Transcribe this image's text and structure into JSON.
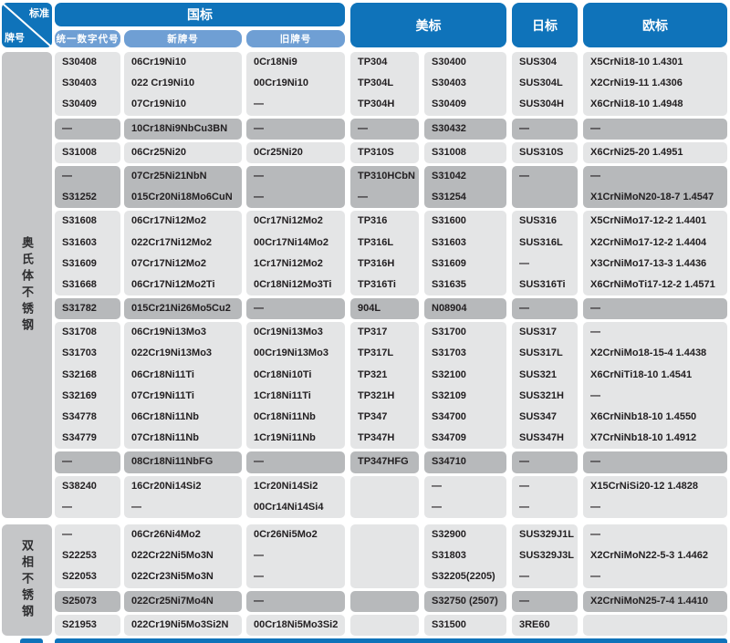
{
  "colors": {
    "header_blue": "#0f73ba",
    "subheader_blue": "#6f9fd4",
    "row_light": "#e4e5e6",
    "row_dark": "#b7b9bb",
    "label_gray": "#c5c6c8",
    "text": "#232022"
  },
  "corner": {
    "top_label": "标准",
    "bottom_label": "牌号"
  },
  "header": {
    "gb": {
      "label": "国标",
      "subcols": [
        "统一数字代号",
        "新牌号",
        "旧牌号"
      ]
    },
    "us": {
      "label": "美标"
    },
    "jp": {
      "label": "日标"
    },
    "eu": {
      "label": "欧标"
    }
  },
  "row_groups": [
    {
      "label": "奥氏体不锈钢",
      "blocks": [
        {
          "shade": "light",
          "rows": [
            [
              "S30408",
              "06Cr19Ni10",
              "0Cr18Ni9",
              "TP304",
              "S30400",
              "SUS304",
              "X5CrNi18-10 1.4301"
            ],
            [
              "S30403",
              "022 Cr19Ni10",
              "00Cr19Ni10",
              "TP304L",
              "S30403",
              "SUS304L",
              "X2CrNi19-11 1.4306"
            ],
            [
              "S30409",
              "07Cr19Ni10",
              "—",
              "TP304H",
              "S30409",
              "SUS304H",
              "X6CrNi18-10 1.4948"
            ]
          ]
        },
        {
          "shade": "dark",
          "rows": [
            [
              "—",
              "10Cr18Ni9NbCu3BN",
              "—",
              "—",
              "S30432",
              "—",
              "—"
            ]
          ]
        },
        {
          "shade": "light",
          "rows": [
            [
              "S31008",
              "06Cr25Ni20",
              "0Cr25Ni20",
              "TP310S",
              "S31008",
              "SUS310S",
              "X6CrNi25-20 1.4951"
            ]
          ]
        },
        {
          "shade": "dark",
          "rows": [
            [
              "—",
              "07Cr25Ni21NbN",
              "—",
              "TP310HCbN",
              "S31042",
              "—",
              "—"
            ],
            [
              "S31252",
              "015Cr20Ni18Mo6CuN",
              "—",
              "—",
              "S31254",
              "",
              "X1CrNiMoN20-18-7 1.4547"
            ]
          ]
        },
        {
          "shade": "light",
          "rows": [
            [
              "S31608",
              "06Cr17Ni12Mo2",
              "0Cr17Ni12Mo2",
              "TP316",
              "S31600",
              "SUS316",
              "X5CrNiMo17-12-2 1.4401"
            ],
            [
              "S31603",
              "022Cr17Ni12Mo2",
              "00Cr17Ni14Mo2",
              "TP316L",
              "S31603",
              "SUS316L",
              "X2CrNiMo17-12-2 1.4404"
            ],
            [
              "S31609",
              "07Cr17Ni12Mo2",
              "1Cr17Ni12Mo2",
              "TP316H",
              "S31609",
              "—",
              "X3CrNiMo17-13-3 1.4436"
            ],
            [
              "S31668",
              "06Cr17Ni12Mo2Ti",
              "0Cr18Ni12Mo3Ti",
              "TP316Ti",
              "S31635",
              "SUS316Ti",
              "X6CrNiMoTi17-12-2 1.4571"
            ]
          ]
        },
        {
          "shade": "dark",
          "rows": [
            [
              "S31782",
              "015Cr21Ni26Mo5Cu2",
              "—",
              "904L",
              "N08904",
              "—",
              "—"
            ]
          ]
        },
        {
          "shade": "light",
          "rows": [
            [
              "S31708",
              "06Cr19Ni13Mo3",
              "0Cr19Ni13Mo3",
              "TP317",
              "S31700",
              "SUS317",
              "—"
            ],
            [
              "S31703",
              "022Cr19Ni13Mo3",
              "00Cr19Ni13Mo3",
              "TP317L",
              "S31703",
              "SUS317L",
              "X2CrNiMo18-15-4 1.4438"
            ],
            [
              "S32168",
              "06Cr18Ni11Ti",
              "0Cr18Ni10Ti",
              "TP321",
              "S32100",
              "SUS321",
              "X6CrNiTi18-10 1.4541"
            ],
            [
              "S32169",
              "07Cr19Ni11Ti",
              "1Cr18Ni11Ti",
              "TP321H",
              "S32109",
              "SUS321H",
              "—"
            ],
            [
              "S34778",
              "06Cr18Ni11Nb",
              "0Cr18Ni11Nb",
              "TP347",
              "S34700",
              "SUS347",
              "X6CrNiNb18-10 1.4550"
            ],
            [
              "S34779",
              "07Cr18Ni11Nb",
              "1Cr19Ni11Nb",
              "TP347H",
              "S34709",
              "SUS347H",
              "X7CrNiNb18-10 1.4912"
            ]
          ]
        },
        {
          "shade": "dark",
          "rows": [
            [
              "—",
              "08Cr18Ni11NbFG",
              "—",
              "TP347HFG",
              "S34710",
              "—",
              "—"
            ]
          ]
        },
        {
          "shade": "light",
          "rows": [
            [
              "S38240",
              "16Cr20Ni14Si2",
              "1Cr20Ni14Si2",
              "",
              "—",
              "—",
              "X15CrNiSi20-12 1.4828"
            ],
            [
              "—",
              "—",
              "00Cr14Ni14Si4",
              "",
              "—",
              "—",
              "—"
            ]
          ]
        }
      ]
    },
    {
      "label": "双相不锈钢",
      "blocks": [
        {
          "shade": "light",
          "rows": [
            [
              "—",
              "06Cr26Ni4Mo2",
              "0Cr26Ni5Mo2",
              "",
              "S32900",
              "SUS329J1L",
              "—"
            ],
            [
              "S22253",
              "022Cr22Ni5Mo3N",
              "—",
              "",
              "S31803",
              "SUS329J3L",
              "X2CrNiMoN22-5-3 1.4462"
            ],
            [
              "S22053",
              "022Cr23Ni5Mo3N",
              "—",
              "",
              "S32205(2205)",
              "—",
              "—"
            ]
          ]
        },
        {
          "shade": "dark",
          "rows": [
            [
              "S25073",
              "022Cr25Ni7Mo4N",
              "—",
              "",
              "S32750 (2507)",
              "—",
              "X2CrNiMoN25-7-4 1.4410"
            ]
          ]
        },
        {
          "shade": "light",
          "rows": [
            [
              "S21953",
              "022Cr19Ni5Mo3Si2N",
              "00Cr18Ni5Mo3Si2",
              "",
              "S31500",
              "3RE60",
              ""
            ]
          ]
        }
      ]
    }
  ]
}
